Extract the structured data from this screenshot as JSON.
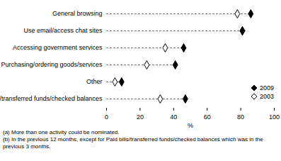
{
  "chart_data": {
    "type": "dot",
    "orientation": "horizontal",
    "categories": [
      "General browsing",
      "Use email/access chat sites",
      "Accessing government services",
      "Purchasing/ordering goods/services",
      "Other",
      "Paid bills/transferred funds/checked balances"
    ],
    "series": [
      {
        "name": "2009",
        "color": "#000000",
        "marker": "diamond",
        "values": [
          86,
          81,
          46,
          41,
          9,
          47
        ]
      },
      {
        "name": "2003",
        "color": "#000000",
        "marker": "diamond-open",
        "values": [
          78,
          81,
          35,
          24,
          5,
          32
        ]
      }
    ],
    "xlabel": "%",
    "xlim": [
      0,
      100
    ],
    "xticks": [
      0,
      20,
      40,
      60,
      80,
      100
    ],
    "legend": "bottom-right",
    "footnotes": [
      "(a) More than one activity could be nominated.",
      "(b) In the previous 12 months, except for Paid bills/transferred funds/checked balances which was in the previous 3 months."
    ]
  }
}
